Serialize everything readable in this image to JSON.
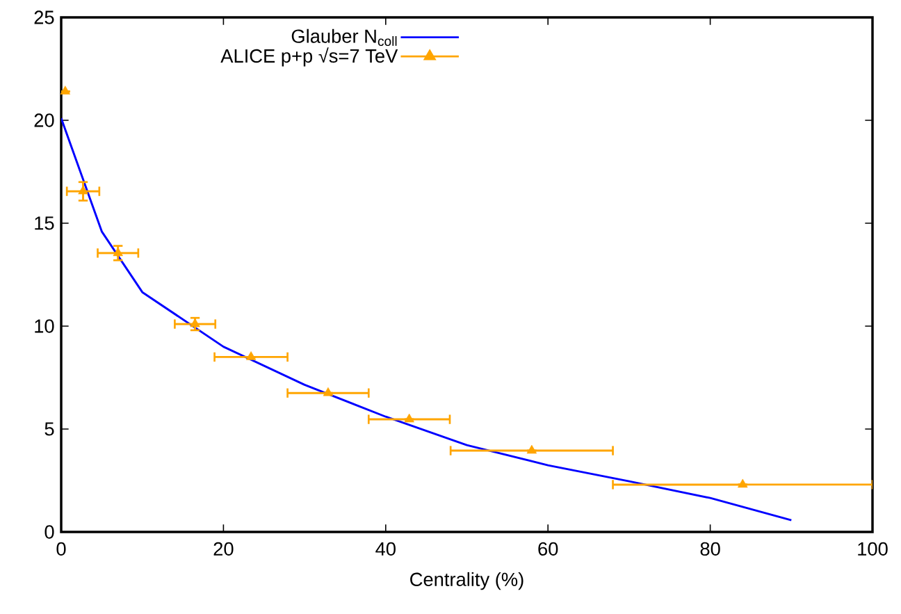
{
  "chart_data": {
    "type": "line",
    "xlabel": "Centrality (%)",
    "xlim": [
      0,
      100
    ],
    "ylim": [
      0,
      25
    ],
    "xticks": [
      0,
      20,
      40,
      60,
      80,
      100
    ],
    "yticks": [
      0,
      5,
      10,
      15,
      20,
      25
    ],
    "legend": "top",
    "series": [
      {
        "name": "Glauber N$_{coll}$",
        "color": "#0000ff",
        "marker": "none",
        "x": [
          0,
          5,
          10,
          20,
          30,
          40,
          50,
          60,
          70,
          80,
          90
        ],
        "values": [
          20.1,
          14.6,
          11.65,
          9.0,
          7.15,
          5.6,
          4.22,
          3.24,
          2.46,
          1.65,
          0.57
        ]
      },
      {
        "name": "ALICE p+p √s=7 TeV",
        "type": "scatter",
        "color": "#ffa500",
        "marker": "triangle",
        "x": [
          0.5,
          2.7,
          7.0,
          16.5,
          23.4,
          32.9,
          42.9,
          58,
          84
        ],
        "values": [
          21.4,
          16.55,
          13.55,
          10.1,
          8.5,
          6.75,
          5.47,
          3.95,
          2.3
        ],
        "errors": [
          null,
          0.45,
          0.35,
          0.3,
          null,
          null,
          null,
          null,
          null
        ],
        "xerrors": [
          null,
          2,
          2.5,
          2.5,
          4.5,
          5,
          5,
          10,
          16
        ]
      }
    ]
  }
}
